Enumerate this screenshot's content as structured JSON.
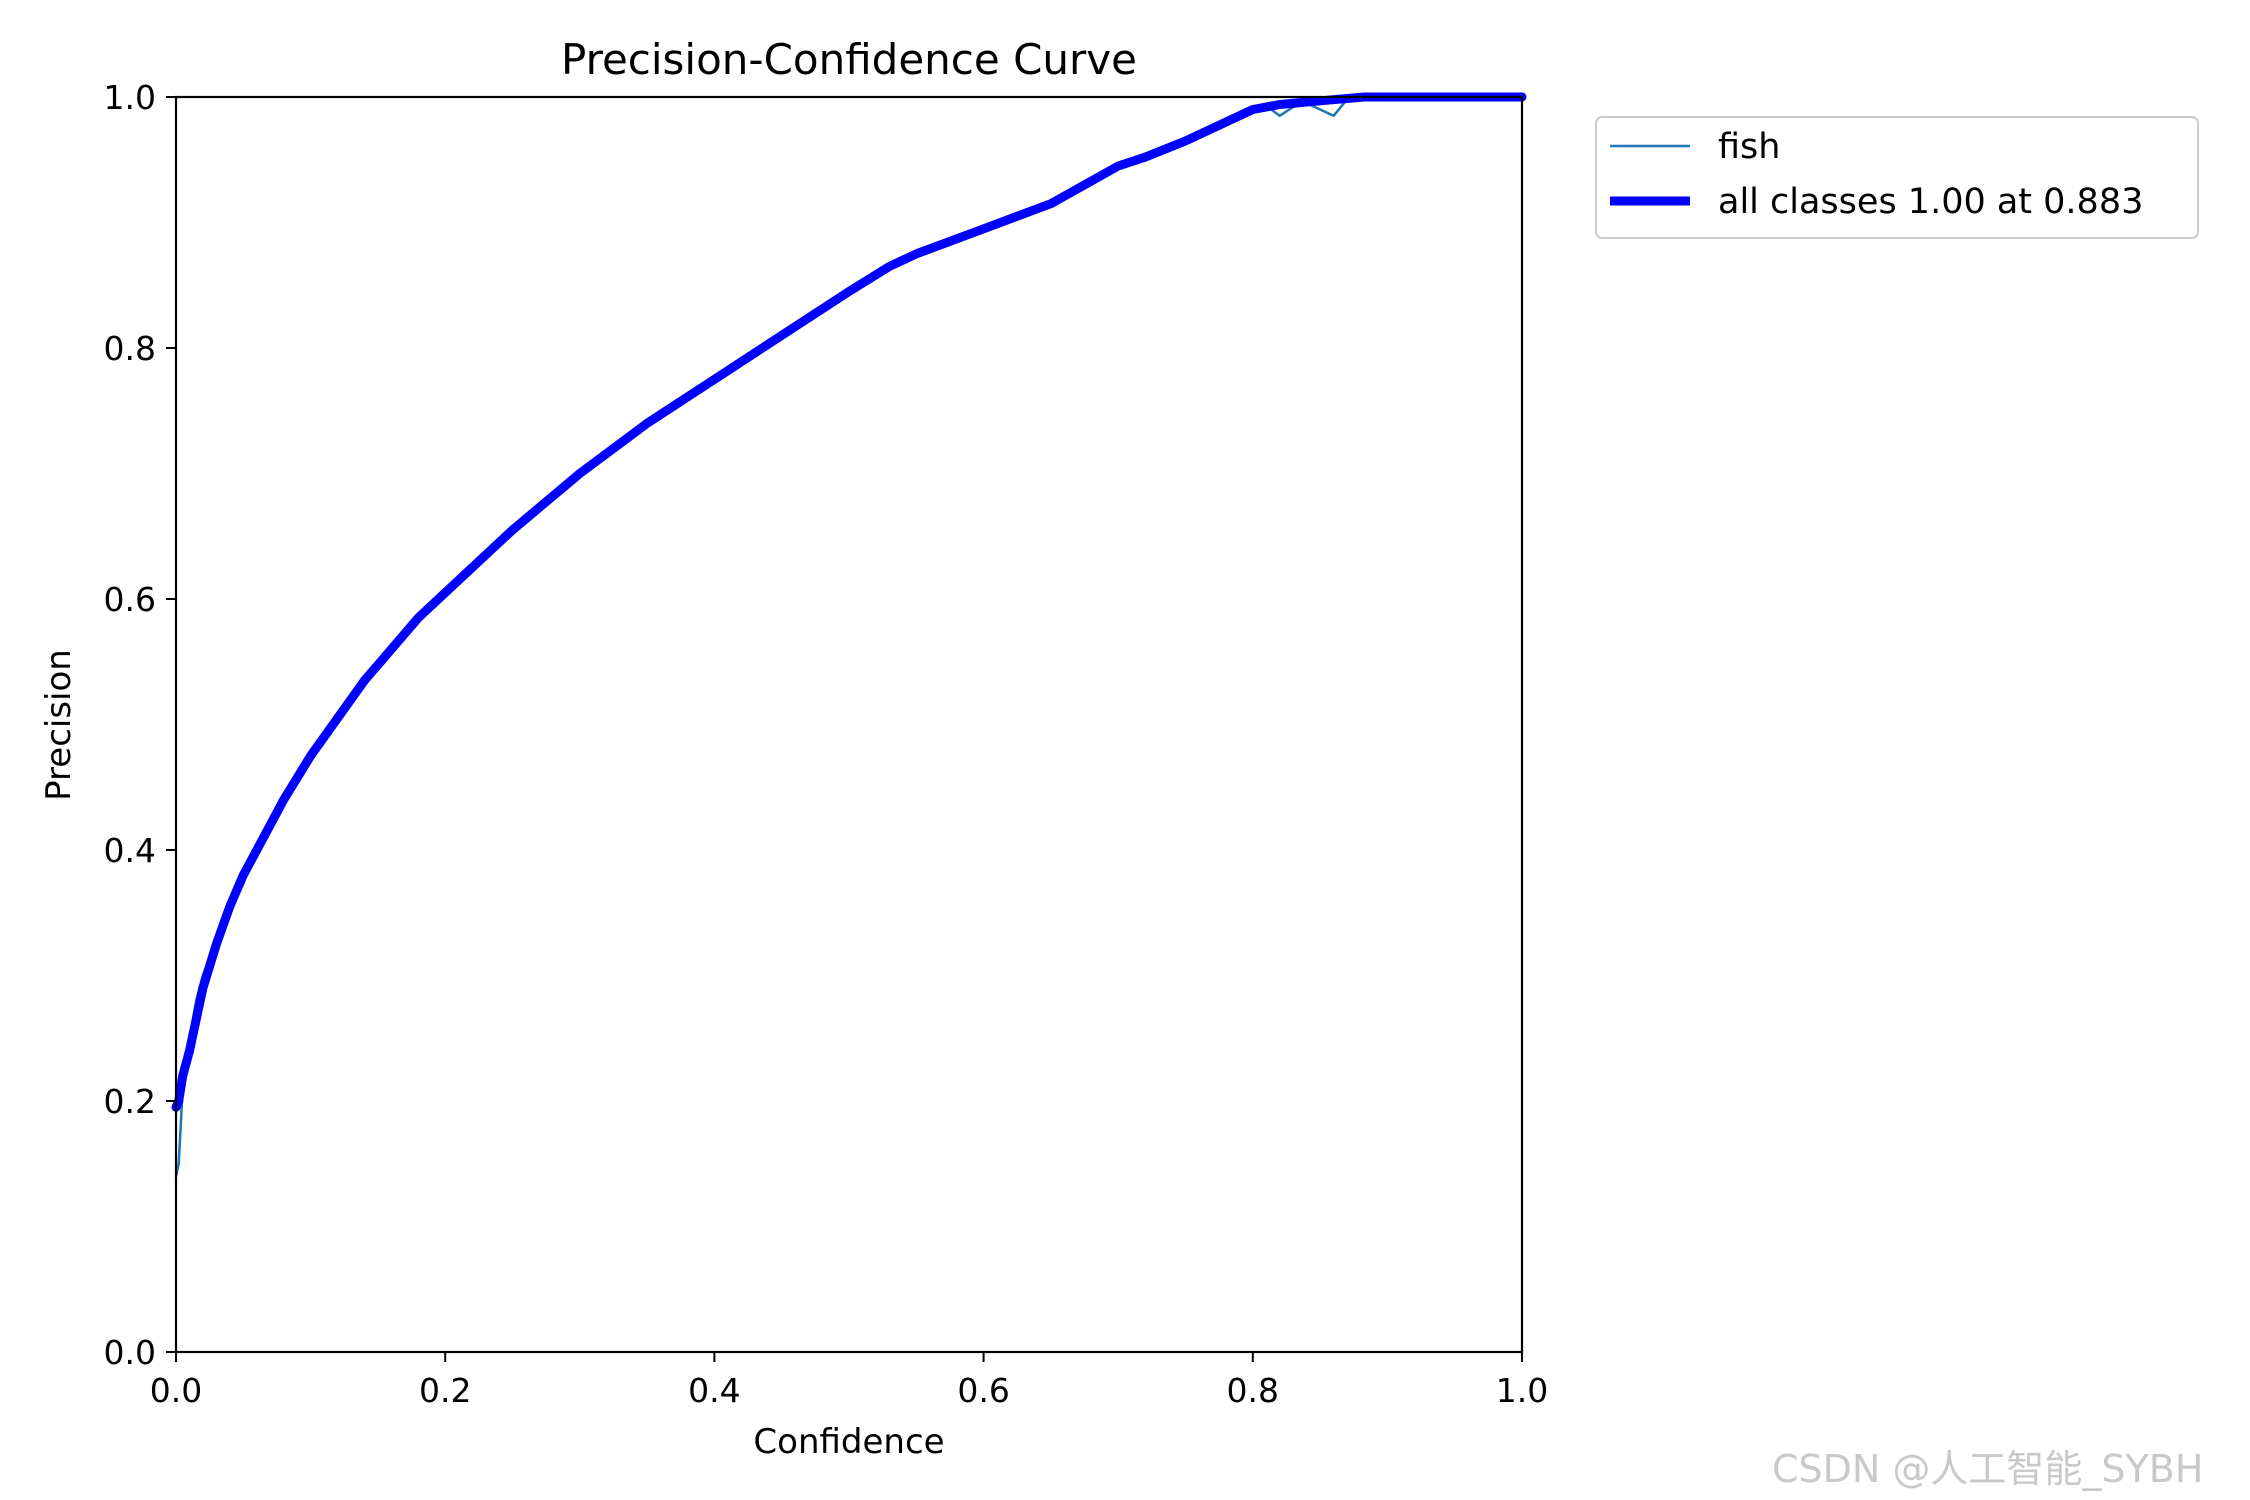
{
  "chart_data": {
    "type": "line",
    "title": "Precision-Confidence Curve",
    "xlabel": "Confidence",
    "ylabel": "Precision",
    "xlim": [
      0.0,
      1.0
    ],
    "ylim": [
      0.0,
      1.0
    ],
    "xticks": [
      "0.0",
      "0.2",
      "0.4",
      "0.6",
      "0.8",
      "1.0"
    ],
    "yticks": [
      "0.0",
      "0.2",
      "0.4",
      "0.6",
      "0.8",
      "1.0"
    ],
    "grid": false,
    "legend_position": "outside-top-right",
    "series": [
      {
        "name": "fish",
        "color": "#1f77b4",
        "style": "thin",
        "x": [
          0.0,
          0.002,
          0.005,
          0.01,
          0.015,
          0.02,
          0.03,
          0.04,
          0.05,
          0.06,
          0.08,
          0.1,
          0.12,
          0.14,
          0.16,
          0.18,
          0.2,
          0.25,
          0.3,
          0.35,
          0.4,
          0.45,
          0.5,
          0.53,
          0.55,
          0.6,
          0.65,
          0.7,
          0.72,
          0.75,
          0.78,
          0.8,
          0.81,
          0.82,
          0.83,
          0.84,
          0.85,
          0.86,
          0.87,
          0.88,
          0.9,
          0.95,
          1.0
        ],
        "y": [
          0.14,
          0.15,
          0.21,
          0.25,
          0.28,
          0.3,
          0.33,
          0.355,
          0.38,
          0.4,
          0.44,
          0.475,
          0.505,
          0.535,
          0.56,
          0.585,
          0.605,
          0.655,
          0.7,
          0.74,
          0.775,
          0.81,
          0.845,
          0.865,
          0.875,
          0.895,
          0.915,
          0.945,
          0.952,
          0.965,
          0.98,
          0.99,
          0.993,
          0.985,
          0.992,
          0.995,
          0.99,
          0.985,
          0.998,
          1.0,
          1.0,
          1.0,
          1.0
        ]
      },
      {
        "name": "all classes 1.00 at 0.883",
        "color": "#0000ff",
        "style": "thick",
        "x": [
          0.0,
          0.002,
          0.005,
          0.01,
          0.015,
          0.02,
          0.03,
          0.04,
          0.05,
          0.06,
          0.08,
          0.1,
          0.12,
          0.14,
          0.16,
          0.18,
          0.2,
          0.25,
          0.3,
          0.35,
          0.4,
          0.45,
          0.5,
          0.53,
          0.55,
          0.6,
          0.65,
          0.7,
          0.72,
          0.75,
          0.78,
          0.8,
          0.82,
          0.85,
          0.883,
          0.9,
          0.95,
          1.0
        ],
        "y": [
          0.195,
          0.2,
          0.22,
          0.24,
          0.265,
          0.29,
          0.325,
          0.355,
          0.38,
          0.4,
          0.44,
          0.475,
          0.505,
          0.535,
          0.56,
          0.585,
          0.605,
          0.655,
          0.7,
          0.74,
          0.775,
          0.81,
          0.845,
          0.865,
          0.875,
          0.895,
          0.915,
          0.945,
          0.952,
          0.965,
          0.98,
          0.99,
          0.994,
          0.997,
          1.0,
          1.0,
          1.0,
          1.0
        ]
      }
    ]
  },
  "watermark": "CSDN @人工智能_SYBH"
}
